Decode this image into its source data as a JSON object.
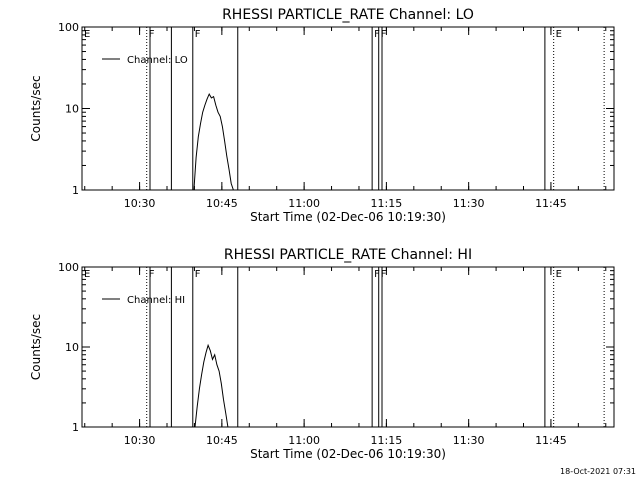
{
  "footer": {
    "timestamp": "18-Oct-2021 07:31"
  },
  "chart_data": [
    {
      "type": "line",
      "title": "RHESSI PARTICLE_RATE Channel: LO",
      "xlabel": "Start Time (02-Dec-06 10:19:30)",
      "ylabel": "Counts/sec",
      "yscale": "log",
      "ylim": [
        1,
        100
      ],
      "xlim": [
        "10:19:30",
        "11:56:30"
      ],
      "x_ticks": [
        "10:30",
        "10:45",
        "11:00",
        "11:15",
        "11:30",
        "11:45"
      ],
      "y_ticks": [
        "1",
        "10",
        "100"
      ],
      "grid": false,
      "legend": {
        "position": "top-left",
        "entries": [
          "Channel: LO"
        ]
      },
      "flags": [
        {
          "label": "E",
          "time": "10:19:30",
          "style": "dotted"
        },
        {
          "label": "F",
          "time": "10:31:18",
          "style": "dotted"
        },
        {
          "label": "",
          "time": "10:31:54",
          "style": "solid"
        },
        {
          "label": "",
          "time": "10:35:48",
          "style": "solid"
        },
        {
          "label": "F",
          "time": "10:39:42",
          "style": "solid"
        },
        {
          "label": "",
          "time": "10:47:54",
          "style": "solid"
        },
        {
          "label": "F",
          "time": "11:12:24",
          "style": "solid"
        },
        {
          "label": "F",
          "time": "11:13:36",
          "style": "solid"
        },
        {
          "label": "",
          "time": "11:14:12",
          "style": "solid"
        },
        {
          "label": "",
          "time": "11:43:54",
          "style": "solid"
        },
        {
          "label": "E",
          "time": "11:45:30",
          "style": "dotted"
        },
        {
          "label": "",
          "time": "11:54:42",
          "style": "dotted"
        }
      ],
      "series": [
        {
          "name": "Channel: LO",
          "points": [
            [
              "10:39:54",
              1
            ],
            [
              "10:40:18",
              2.5
            ],
            [
              "10:40:42",
              4.5
            ],
            [
              "10:41:06",
              6.5
            ],
            [
              "10:41:30",
              9
            ],
            [
              "10:41:54",
              11
            ],
            [
              "10:42:18",
              13
            ],
            [
              "10:42:42",
              15
            ],
            [
              "10:43:06",
              13.5
            ],
            [
              "10:43:30",
              14
            ],
            [
              "10:43:54",
              11
            ],
            [
              "10:44:18",
              9
            ],
            [
              "10:44:42",
              8
            ],
            [
              "10:45:06",
              6
            ],
            [
              "10:45:30",
              4
            ],
            [
              "10:45:54",
              2.6
            ],
            [
              "10:46:18",
              1.8
            ],
            [
              "10:46:42",
              1.2
            ],
            [
              "10:47:06",
              1
            ]
          ]
        }
      ]
    },
    {
      "type": "line",
      "title": "RHESSI PARTICLE_RATE Channel: HI",
      "xlabel": "Start Time (02-Dec-06 10:19:30)",
      "ylabel": "Counts/sec",
      "yscale": "log",
      "ylim": [
        1,
        100
      ],
      "xlim": [
        "10:19:30",
        "11:56:30"
      ],
      "x_ticks": [
        "10:30",
        "10:45",
        "11:00",
        "11:15",
        "11:30",
        "11:45"
      ],
      "y_ticks": [
        "1",
        "10",
        "100"
      ],
      "grid": false,
      "legend": {
        "position": "top-left",
        "entries": [
          "Channel: HI"
        ]
      },
      "flags": [
        {
          "label": "E",
          "time": "10:19:30",
          "style": "dotted"
        },
        {
          "label": "F",
          "time": "10:31:18",
          "style": "dotted"
        },
        {
          "label": "",
          "time": "10:31:54",
          "style": "solid"
        },
        {
          "label": "",
          "time": "10:35:48",
          "style": "solid"
        },
        {
          "label": "F",
          "time": "10:39:42",
          "style": "solid"
        },
        {
          "label": "",
          "time": "10:47:54",
          "style": "solid"
        },
        {
          "label": "F",
          "time": "11:12:24",
          "style": "solid"
        },
        {
          "label": "F",
          "time": "11:13:36",
          "style": "solid"
        },
        {
          "label": "",
          "time": "11:14:12",
          "style": "solid"
        },
        {
          "label": "",
          "time": "11:43:54",
          "style": "solid"
        },
        {
          "label": "E",
          "time": "11:45:30",
          "style": "dotted"
        },
        {
          "label": "",
          "time": "11:54:42",
          "style": "dotted"
        }
      ],
      "series": [
        {
          "name": "Channel: HI",
          "points": [
            [
              "10:40:06",
              1
            ],
            [
              "10:40:30",
              1.8
            ],
            [
              "10:40:54",
              3
            ],
            [
              "10:41:18",
              4.5
            ],
            [
              "10:41:42",
              6.5
            ],
            [
              "10:42:06",
              8.5
            ],
            [
              "10:42:30",
              10.5
            ],
            [
              "10:42:54",
              9
            ],
            [
              "10:43:18",
              7
            ],
            [
              "10:43:42",
              8
            ],
            [
              "10:44:06",
              6
            ],
            [
              "10:44:30",
              5
            ],
            [
              "10:44:54",
              3.5
            ],
            [
              "10:45:18",
              2.2
            ],
            [
              "10:45:42",
              1.5
            ],
            [
              "10:46:06",
              1
            ]
          ]
        }
      ]
    }
  ]
}
